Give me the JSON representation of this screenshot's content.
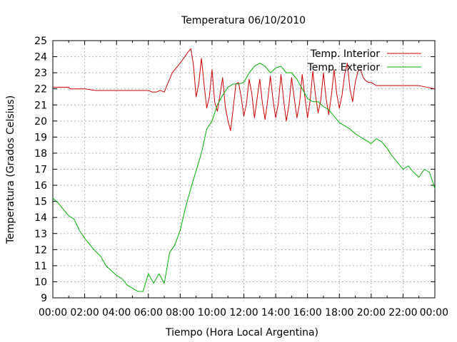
{
  "chart_data": {
    "type": "line",
    "title": "Temperatura 06/10/2010",
    "xlabel": "Tiempo (Hora Local Argentina)",
    "ylabel": "Temperatura (Grados Celsius)",
    "xlim": [
      "00:00",
      "24:00"
    ],
    "ylim": [
      9,
      25
    ],
    "x_ticks": [
      "00:00",
      "02:00",
      "04:00",
      "06:00",
      "08:00",
      "10:00",
      "12:00",
      "14:00",
      "16:00",
      "18:00",
      "20:00",
      "22:00",
      "00:00"
    ],
    "y_ticks": [
      9,
      10,
      11,
      12,
      13,
      14,
      15,
      16,
      17,
      18,
      19,
      20,
      21,
      22,
      23,
      24,
      25
    ],
    "grid": true,
    "legend_position": "top-right",
    "series": [
      {
        "name": "Temp. Interior",
        "color": "#cc0000",
        "x": [
          "00:00",
          "01:00",
          "01:05",
          "02:00",
          "02:40",
          "03:00",
          "04:00",
          "05:00",
          "06:00",
          "06:15",
          "06:30",
          "06:45",
          "07:00",
          "07:15",
          "07:30",
          "08:00",
          "08:30",
          "08:40",
          "08:50",
          "09:00",
          "09:10",
          "09:20",
          "09:30",
          "09:40",
          "09:50",
          "10:00",
          "10:10",
          "10:20",
          "10:30",
          "10:40",
          "10:50",
          "11:00",
          "11:10",
          "11:20",
          "11:30",
          "11:40",
          "11:50",
          "12:00",
          "12:10",
          "12:20",
          "12:30",
          "12:40",
          "12:50",
          "13:00",
          "13:10",
          "13:20",
          "13:30",
          "13:40",
          "13:50",
          "14:00",
          "14:10",
          "14:20",
          "14:30",
          "14:40",
          "14:50",
          "15:00",
          "15:10",
          "15:20",
          "15:30",
          "15:40",
          "15:50",
          "16:00",
          "16:10",
          "16:20",
          "16:30",
          "16:40",
          "16:50",
          "17:00",
          "17:10",
          "17:20",
          "17:30",
          "17:40",
          "17:50",
          "18:00",
          "18:10",
          "18:20",
          "18:30",
          "18:40",
          "18:50",
          "19:00",
          "19:10",
          "19:20",
          "19:30",
          "19:40",
          "19:50",
          "20:00",
          "20:20",
          "21:00",
          "22:00",
          "23:00",
          "23:30",
          "24:00"
        ],
        "y": [
          22.1,
          22.1,
          22.0,
          22.0,
          21.9,
          21.9,
          21.9,
          21.9,
          21.9,
          21.8,
          21.8,
          21.9,
          21.8,
          22.4,
          23.0,
          23.6,
          24.3,
          24.5,
          23.5,
          21.5,
          22.3,
          23.9,
          22.3,
          20.8,
          21.5,
          23.2,
          21.2,
          20.6,
          21.6,
          22.7,
          20.9,
          20.0,
          19.4,
          20.8,
          22.3,
          22.4,
          21.5,
          20.3,
          21.1,
          22.6,
          21.7,
          20.2,
          21.4,
          22.6,
          21.1,
          20.1,
          21.3,
          22.8,
          21.3,
          20.2,
          21.1,
          22.9,
          21.3,
          20.0,
          21.0,
          22.7,
          21.4,
          20.2,
          21.1,
          22.9,
          21.5,
          20.2,
          21.3,
          23.1,
          21.6,
          20.5,
          21.3,
          23.0,
          21.4,
          20.4,
          21.6,
          23.2,
          21.7,
          20.8,
          21.6,
          22.9,
          23.6,
          22.0,
          21.2,
          22.4,
          23.1,
          23.2,
          22.7,
          22.5,
          22.4,
          22.4,
          22.2,
          22.2,
          22.2,
          22.2,
          22.1,
          22.0
        ]
      },
      {
        "name": "Temp. Exterior",
        "color": "#00b000",
        "x": [
          "00:00",
          "00:20",
          "00:40",
          "01:00",
          "01:20",
          "01:40",
          "02:00",
          "02:20",
          "02:40",
          "03:00",
          "03:20",
          "03:40",
          "04:00",
          "04:20",
          "04:40",
          "05:00",
          "05:20",
          "05:40",
          "06:00",
          "06:20",
          "06:40",
          "07:00",
          "07:20",
          "07:40",
          "08:00",
          "08:20",
          "08:40",
          "09:00",
          "09:20",
          "09:40",
          "10:00",
          "10:20",
          "10:40",
          "11:00",
          "11:20",
          "11:40",
          "12:00",
          "12:20",
          "12:40",
          "13:00",
          "13:20",
          "13:40",
          "14:00",
          "14:20",
          "14:40",
          "15:00",
          "15:20",
          "15:40",
          "16:00",
          "16:20",
          "16:40",
          "17:00",
          "17:20",
          "17:40",
          "18:00",
          "18:20",
          "18:40",
          "19:00",
          "19:20",
          "19:40",
          "20:00",
          "20:20",
          "20:40",
          "21:00",
          "21:20",
          "21:40",
          "22:00",
          "22:20",
          "22:40",
          "23:00",
          "23:20",
          "23:40",
          "24:00"
        ],
        "y": [
          15.2,
          14.9,
          14.5,
          14.1,
          13.9,
          13.2,
          12.7,
          12.3,
          11.9,
          11.6,
          11.0,
          10.7,
          10.4,
          10.2,
          9.8,
          9.6,
          9.4,
          9.4,
          10.5,
          9.9,
          10.5,
          9.9,
          11.8,
          12.3,
          13.2,
          14.6,
          15.8,
          16.9,
          18.0,
          19.5,
          20.0,
          21.0,
          21.6,
          22.1,
          22.3,
          22.3,
          22.4,
          23.0,
          23.4,
          23.6,
          23.4,
          23.0,
          23.3,
          23.4,
          23.0,
          23.0,
          22.6,
          22.0,
          21.4,
          21.2,
          21.2,
          20.9,
          20.7,
          20.3,
          19.9,
          19.7,
          19.5,
          19.2,
          19.0,
          18.8,
          18.6,
          18.9,
          18.7,
          18.3,
          17.8,
          17.4,
          17.0,
          17.2,
          16.8,
          16.5,
          17.0,
          16.8,
          15.8
        ]
      }
    ]
  }
}
